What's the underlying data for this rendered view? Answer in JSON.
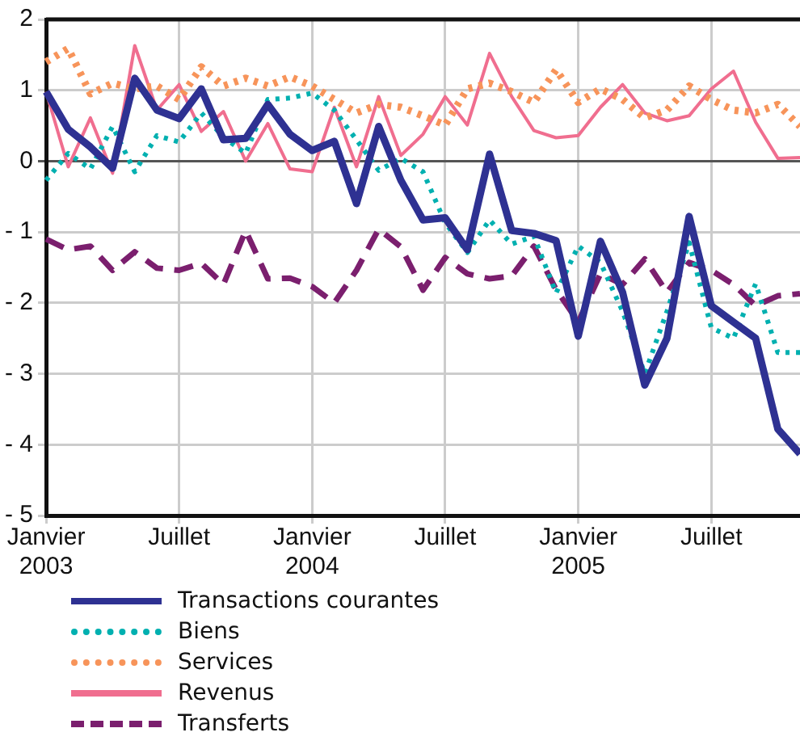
{
  "chart_data": {
    "type": "line",
    "categories": [
      "Janvier\n2003",
      null,
      null,
      null,
      null,
      null,
      "Juillet",
      null,
      null,
      null,
      null,
      null,
      "Janvier\n2004",
      null,
      null,
      null,
      null,
      null,
      "Juillet",
      null,
      null,
      null,
      null,
      null,
      "Janvier\n2005",
      null,
      null,
      null,
      null,
      null,
      "Juillet",
      null,
      null,
      null,
      null
    ],
    "series": [
      {
        "name": "Transactions courantes",
        "color": "#2e3192",
        "line_style": "solid",
        "values": [
          0.98,
          0.45,
          0.2,
          -0.1,
          1.17,
          0.72,
          0.6,
          1.02,
          0.3,
          0.32,
          0.8,
          0.38,
          0.15,
          0.28,
          -0.6,
          0.49,
          -0.27,
          -0.83,
          -0.8,
          -1.25,
          0.1,
          -0.98,
          -1.02,
          -1.12,
          -2.47,
          -1.13,
          -1.85,
          -3.16,
          -2.5,
          -0.78,
          -2.04,
          -2.27,
          -2.5,
          -3.78,
          -4.13
        ]
      },
      {
        "name": "Biens",
        "color": "#00b0b0",
        "line_style": "dotted",
        "values": [
          -0.27,
          0.11,
          -0.11,
          0.49,
          -0.15,
          0.36,
          0.27,
          0.68,
          0.34,
          0.11,
          0.87,
          0.89,
          0.96,
          0.72,
          0.3,
          -0.13,
          0.04,
          -0.15,
          -0.87,
          -1.29,
          -0.83,
          -1.17,
          -1.06,
          -1.86,
          -1.2,
          -1.43,
          -2.12,
          -3.0,
          -2.12,
          -1.15,
          -2.35,
          -2.5,
          -1.73,
          -2.7,
          -2.7
        ]
      },
      {
        "name": "Services",
        "color": "#f7945a",
        "line_style": "dotted",
        "values": [
          1.4,
          1.59,
          0.95,
          1.1,
          1.02,
          1.06,
          0.87,
          1.33,
          1.06,
          1.17,
          1.06,
          1.19,
          1.06,
          0.87,
          0.68,
          0.8,
          0.76,
          0.64,
          0.51,
          1.02,
          1.1,
          0.98,
          0.83,
          1.29,
          0.83,
          1.02,
          0.87,
          0.61,
          0.72,
          1.06,
          0.87,
          0.72,
          0.68,
          0.8,
          0.49
        ]
      },
      {
        "name": "Revenus",
        "color": "#f06e8f",
        "line_style": "solid",
        "values": [
          0.98,
          -0.08,
          0.61,
          -0.17,
          1.63,
          0.72,
          1.08,
          0.42,
          0.7,
          0.0,
          0.53,
          -0.11,
          -0.15,
          0.76,
          -0.08,
          0.91,
          0.08,
          0.38,
          0.91,
          0.51,
          1.52,
          0.91,
          0.43,
          0.33,
          0.36,
          0.76,
          1.08,
          0.68,
          0.57,
          0.64,
          1.02,
          1.27,
          0.55,
          0.04,
          0.05
        ]
      },
      {
        "name": "Transferts",
        "color": "#7b1f6e",
        "line_style": "dashed",
        "values": [
          -1.1,
          -1.25,
          -1.2,
          -1.54,
          -1.28,
          -1.51,
          -1.54,
          -1.44,
          -1.74,
          -0.98,
          -1.66,
          -1.65,
          -1.77,
          -2.0,
          -1.54,
          -0.96,
          -1.21,
          -1.82,
          -1.36,
          -1.59,
          -1.66,
          -1.62,
          -1.2,
          -1.81,
          -2.27,
          -1.59,
          -1.74,
          -1.38,
          -1.85,
          -1.43,
          -1.54,
          -1.74,
          -2.04,
          -1.9,
          -1.87
        ]
      }
    ],
    "ylim": [
      -5,
      2
    ],
    "yticks": [
      {
        "value": -5,
        "label": "- 5"
      },
      {
        "value": -4,
        "label": "- 4"
      },
      {
        "value": -3,
        "label": "- 3"
      },
      {
        "value": -2,
        "label": "- 2"
      },
      {
        "value": -1,
        "label": "- 1"
      },
      0,
      1,
      2
    ],
    "grid": true,
    "legend": "bottom",
    "marker": "none"
  }
}
